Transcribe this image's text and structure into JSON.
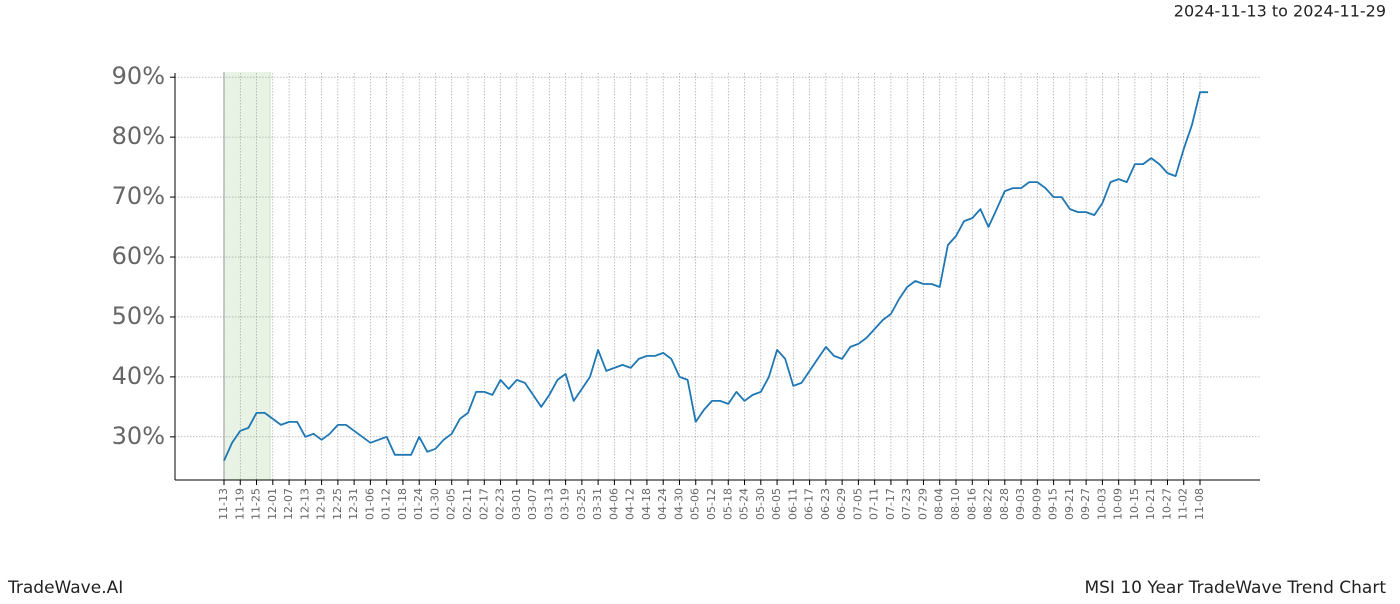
{
  "chart_data": {
    "type": "line",
    "date_range": "2024-11-13 to 2024-11-29",
    "brand": "TradeWave.AI",
    "title": "MSI 10 Year TradeWave Trend Chart",
    "categories": [
      "11-13",
      null,
      "11-19",
      null,
      "11-25",
      null,
      "12-01",
      null,
      "12-07",
      null,
      "12-13",
      null,
      "12-19",
      null,
      "12-25",
      null,
      "12-31",
      null,
      "01-06",
      null,
      "01-12",
      null,
      "01-18",
      null,
      "01-24",
      null,
      "01-30",
      null,
      "02-05",
      null,
      "02-11",
      null,
      "02-17",
      null,
      "02-23",
      null,
      "03-01",
      null,
      "03-07",
      null,
      "03-13",
      null,
      "03-19",
      null,
      "03-25",
      null,
      "03-31",
      null,
      "04-06",
      null,
      "04-12",
      null,
      "04-18",
      null,
      "04-24",
      null,
      "04-30",
      null,
      "05-06",
      null,
      "05-12",
      null,
      "05-18",
      null,
      "05-24",
      null,
      "05-30",
      null,
      "06-05",
      null,
      "06-11",
      null,
      "06-17",
      null,
      "06-23",
      null,
      "06-29",
      null,
      "07-05",
      null,
      "07-11",
      null,
      "07-17",
      null,
      "07-23",
      null,
      "07-29",
      null,
      "08-04",
      null,
      "08-10",
      null,
      "08-16",
      null,
      "08-22",
      null,
      "08-28",
      null,
      "09-03",
      null,
      "09-09",
      null,
      "09-15",
      null,
      "09-21",
      null,
      "09-27",
      null,
      "10-03",
      null,
      "10-09",
      null,
      "10-15",
      null,
      "10-21",
      null,
      "10-27",
      null,
      "11-02",
      null,
      "11-08",
      null
    ],
    "series": [
      {
        "color": "#1f77b4",
        "values": [
          26,
          29,
          31,
          31.5,
          34,
          34,
          33,
          32,
          32.5,
          32.5,
          30,
          30.5,
          29.5,
          30.5,
          32,
          32,
          31,
          30,
          29,
          29.5,
          30,
          27,
          27,
          27,
          30,
          27.5,
          28,
          29.5,
          30.5,
          33,
          34,
          37.5,
          37.5,
          37,
          39.5,
          38,
          39.5,
          39,
          37,
          35,
          37,
          39.5,
          40.5,
          36,
          38,
          40,
          44.5,
          41,
          41.5,
          42,
          41.5,
          43,
          43.5,
          43.5,
          44,
          43,
          40,
          39.5,
          32.5,
          34.5,
          36,
          36,
          35.5,
          37.5,
          36,
          37,
          37.5,
          40,
          44.5,
          43,
          38.5,
          39,
          41,
          43,
          45,
          43.5,
          43,
          45,
          45.5,
          46.5,
          48,
          49.5,
          50.5,
          53,
          55,
          56,
          55.5,
          55.5,
          55,
          62,
          63.5,
          66,
          66.5,
          68,
          65,
          68,
          71,
          71.5,
          71.5,
          72.5,
          72.5,
          71.5,
          70,
          70,
          68,
          67.5,
          67.5,
          67,
          69,
          72.5,
          73,
          72.5,
          75.5,
          75.5,
          76.5,
          75.5,
          74,
          73.5,
          78,
          82,
          87.5,
          87.5
        ]
      }
    ],
    "ylim": [
      22.8,
      90.7
    ],
    "yticks": [
      {
        "value": 30,
        "label": "30%"
      },
      {
        "value": 40,
        "label": "40%"
      },
      {
        "value": 50,
        "label": "50%"
      },
      {
        "value": 60,
        "label": "60%"
      },
      {
        "value": 70,
        "label": "70%"
      },
      {
        "value": 80,
        "label": "80%"
      },
      {
        "value": 90,
        "label": "90%"
      }
    ],
    "grid": true
  }
}
